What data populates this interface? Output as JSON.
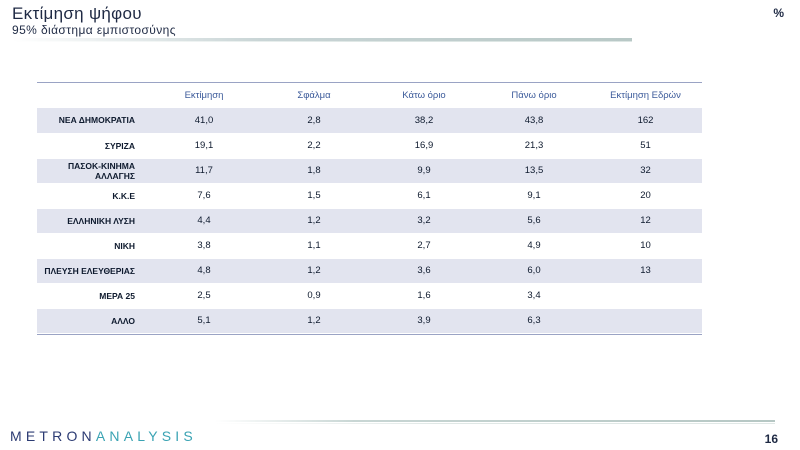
{
  "header": {
    "title": "Εκτίμηση ψήφου",
    "subtitle": "95% διάστημα εμπιστοσύνης",
    "unit": "%"
  },
  "table": {
    "columns": [
      "",
      "Εκτίμηση",
      "Σφάλμα",
      "Κάτω όριο",
      "Πάνω όριο",
      "Εκτίμηση Εδρών"
    ],
    "rows": [
      {
        "party": "ΝΕΑ  ΔΗΜΟΚΡΑΤΙΑ",
        "estimate": "41,0",
        "error": "2,8",
        "lower": "38,2",
        "upper": "43,8",
        "seats": "162"
      },
      {
        "party": "ΣΥΡΙΖΑ",
        "estimate": "19,1",
        "error": "2,2",
        "lower": "16,9",
        "upper": "21,3",
        "seats": "51"
      },
      {
        "party": "ΠΑΣΟΚ-ΚΙΝΗΜΑ ΑΛΛΑΓΗΣ",
        "estimate": "11,7",
        "error": "1,8",
        "lower": "9,9",
        "upper": "13,5",
        "seats": "32"
      },
      {
        "party": "Κ.Κ.Ε",
        "estimate": "7,6",
        "error": "1,5",
        "lower": "6,1",
        "upper": "9,1",
        "seats": "20"
      },
      {
        "party": "ΕΛΛΗΝΙΚΗ  ΛΥΣΗ",
        "estimate": "4,4",
        "error": "1,2",
        "lower": "3,2",
        "upper": "5,6",
        "seats": "12"
      },
      {
        "party": "ΝΙΚΗ",
        "estimate": "3,8",
        "error": "1,1",
        "lower": "2,7",
        "upper": "4,9",
        "seats": "10"
      },
      {
        "party": "ΠΛΕΥΣΗ ΕΛΕΥΘΕΡΙΑΣ",
        "estimate": "4,8",
        "error": "1,2",
        "lower": "3,6",
        "upper": "6,0",
        "seats": "13"
      },
      {
        "party": "ΜΕΡΑ 25",
        "estimate": "2,5",
        "error": "0,9",
        "lower": "1,6",
        "upper": "3,4",
        "seats": ""
      },
      {
        "party": "ΑΛΛΟ",
        "estimate": "5,1",
        "error": "1,2",
        "lower": "3,9",
        "upper": "6,3",
        "seats": ""
      }
    ]
  },
  "footer": {
    "logo_part1": "METRON",
    "logo_part2": "ANALYSIS",
    "page_number": "16"
  },
  "colors": {
    "row_shade": "#e2e4ef",
    "header_text": "#3b5a9a",
    "logo_dark": "#2c3b73",
    "logo_teal": "#3aa3b3"
  }
}
